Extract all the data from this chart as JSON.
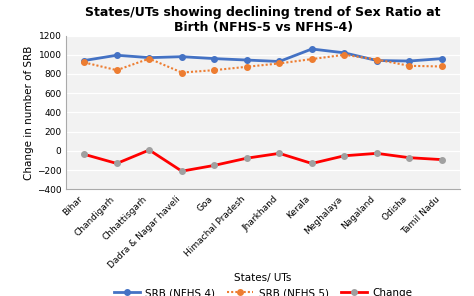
{
  "title": "States/UTs showing declining trend of Sex Ratio at\nBirth (NFHS-5 vs NFHS-4)",
  "xlabel": "States/ UTs",
  "ylabel": "Change in number of SRB",
  "categories": [
    "Bihar",
    "Chandigarh",
    "Chhattisgarh",
    "Dadra & Nagar haveli",
    "Goa",
    "Himachal Pradesh",
    "Jharkhand",
    "Kerala",
    "Meghalaya",
    "Nagaland",
    "Odisha",
    "Tamil Nadu"
  ],
  "srb_nfhs4": [
    940,
    995,
    970,
    980,
    960,
    945,
    930,
    1060,
    1020,
    940,
    935,
    960
  ],
  "srb_nfhs5": [
    920,
    840,
    960,
    815,
    840,
    875,
    910,
    955,
    1000,
    950,
    885,
    878
  ],
  "change": [
    -35,
    -130,
    10,
    -210,
    -150,
    -75,
    -25,
    -130,
    -50,
    -25,
    -70,
    -90
  ],
  "color_nfhs4": "#4472C4",
  "color_nfhs5": "#ED7D31",
  "color_change": "#FF0000",
  "color_change_marker": "#A0A0A0",
  "ylim": [
    -400,
    1200
  ],
  "yticks": [
    -400,
    -200,
    0,
    200,
    400,
    600,
    800,
    1000,
    1200
  ],
  "legend_labels": [
    "SRB (NFHS 4)",
    "SRB (NFHS 5)",
    "Change"
  ],
  "title_fontsize": 9,
  "axis_label_fontsize": 7.5,
  "tick_fontsize": 6.5,
  "legend_fontsize": 7.5,
  "bg_color": "#F2F2F2"
}
